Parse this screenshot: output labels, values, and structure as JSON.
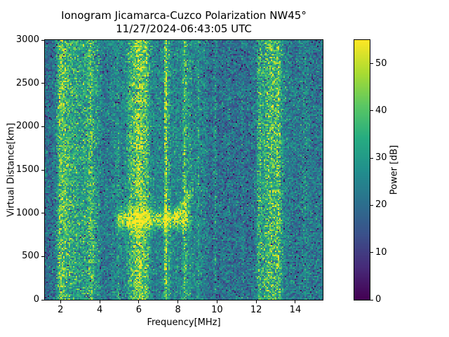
{
  "chart_data": {
    "type": "heatmap",
    "title": "Ionogram Jicamarca-Cuzco Polarization NW45°",
    "subtitle": "11/27/2024-06:43:05 UTC",
    "xlabel": "Frequency[MHz]",
    "ylabel": "Virtual Distance[km]",
    "colorbar_label": "Power [dB]",
    "colormap": "viridis",
    "freq_range_mhz": [
      1.2,
      15.4
    ],
    "distance_range_km": [
      0,
      3000
    ],
    "power_range_db": [
      0,
      55
    ],
    "x_ticks": [
      2,
      4,
      6,
      8,
      10,
      12,
      14
    ],
    "y_ticks": [
      0,
      500,
      1000,
      1500,
      2000,
      2500,
      3000
    ],
    "colorbar_ticks": [
      0,
      10,
      20,
      30,
      40,
      50
    ],
    "noise_floor_db": 23,
    "noise_sigma_db": 5.5,
    "dark_speckle_fraction": 0.035,
    "broad_regions": [
      {
        "f0": 1.2,
        "f1": 1.75,
        "delta_db": -3
      },
      {
        "f0": 1.9,
        "f1": 3.9,
        "delta_db": 2
      },
      {
        "f0": 4.6,
        "f1": 9.4,
        "delta_db": 2
      },
      {
        "f0": 9.5,
        "f1": 12.0,
        "delta_db": -2.5
      },
      {
        "f0": 13.4,
        "f1": 15.4,
        "delta_db": -1
      }
    ],
    "bands": [
      {
        "f_mhz": 1.95,
        "w_mhz": 0.08,
        "boost_db": 6
      },
      {
        "f_mhz": 2.15,
        "w_mhz": 0.22,
        "boost_db": 13
      },
      {
        "f_mhz": 2.75,
        "w_mhz": 0.28,
        "boost_db": 8
      },
      {
        "f_mhz": 3.2,
        "w_mhz": 0.08,
        "boost_db": 4
      },
      {
        "f_mhz": 3.55,
        "w_mhz": 0.17,
        "boost_db": 12
      },
      {
        "f_mhz": 3.95,
        "w_mhz": 0.07,
        "boost_db": 4
      },
      {
        "f_mhz": 4.95,
        "w_mhz": 0.05,
        "boost_db": 4
      },
      {
        "f_mhz": 5.55,
        "w_mhz": 0.1,
        "boost_db": 6
      },
      {
        "f_mhz": 6.0,
        "w_mhz": 0.26,
        "boost_db": 20
      },
      {
        "f_mhz": 6.4,
        "w_mhz": 0.12,
        "boost_db": 7
      },
      {
        "f_mhz": 7.38,
        "w_mhz": 0.05,
        "boost_db": 24
      },
      {
        "f_mhz": 7.55,
        "w_mhz": 0.05,
        "boost_db": 8
      },
      {
        "f_mhz": 8.35,
        "w_mhz": 0.08,
        "boost_db": 13
      },
      {
        "f_mhz": 8.6,
        "w_mhz": 0.06,
        "boost_db": 5
      },
      {
        "f_mhz": 9.05,
        "w_mhz": 0.04,
        "boost_db": 5
      },
      {
        "f_mhz": 9.9,
        "w_mhz": 0.05,
        "boost_db": 7
      },
      {
        "f_mhz": 10.6,
        "w_mhz": 0.04,
        "boost_db": 3
      },
      {
        "f_mhz": 11.3,
        "w_mhz": 0.04,
        "boost_db": 4
      },
      {
        "f_mhz": 12.15,
        "w_mhz": 0.06,
        "boost_db": 8
      },
      {
        "f_mhz": 12.75,
        "w_mhz": 0.4,
        "boost_db": 15
      },
      {
        "f_mhz": 13.15,
        "w_mhz": 0.08,
        "boost_db": 7
      },
      {
        "f_mhz": 14.5,
        "w_mhz": 0.15,
        "boost_db": 3
      }
    ],
    "echo": {
      "f0_mhz": 4.7,
      "f1_mhz": 8.8,
      "d_center_km": 930,
      "d_sigma_km": 80,
      "boost_db": 22,
      "curl": {
        "f0_mhz": 7.8,
        "d_start_km": 960,
        "slope_km_per_mhz": 330,
        "d_sigma_km": 60,
        "boost_db": 14
      }
    }
  }
}
